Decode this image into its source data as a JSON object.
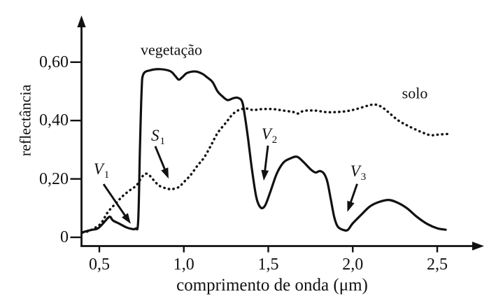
{
  "colors": {
    "ink": "#111111",
    "background": "#ffffff"
  },
  "chart_data": {
    "type": "line",
    "xlabel": "comprimento de onda (μm)",
    "ylabel": "reflectância",
    "xlim": [
      0.4,
      2.75
    ],
    "ylim": [
      0,
      0.75
    ],
    "grid": false,
    "x_ticks": [
      {
        "value": 0.5,
        "label": "0,5"
      },
      {
        "value": 1.0,
        "label": "1,0"
      },
      {
        "value": 1.5,
        "label": "1,5"
      },
      {
        "value": 2.0,
        "label": "2,0"
      },
      {
        "value": 2.5,
        "label": "2,5"
      }
    ],
    "y_ticks": [
      {
        "value": 0,
        "label": "0"
      },
      {
        "value": 0.2,
        "label": "0,20"
      },
      {
        "value": 0.4,
        "label": "0,40"
      },
      {
        "value": 0.6,
        "label": "0,60"
      }
    ],
    "series": [
      {
        "name": "vegetação",
        "style": "solid",
        "points": [
          [
            0.4,
            0.017
          ],
          [
            0.43,
            0.022
          ],
          [
            0.46,
            0.026
          ],
          [
            0.49,
            0.03
          ],
          [
            0.52,
            0.046
          ],
          [
            0.55,
            0.066
          ],
          [
            0.565,
            0.07
          ],
          [
            0.58,
            0.058
          ],
          [
            0.62,
            0.046
          ],
          [
            0.66,
            0.034
          ],
          [
            0.69,
            0.029
          ],
          [
            0.715,
            0.03
          ],
          [
            0.73,
            0.055
          ],
          [
            0.74,
            0.3
          ],
          [
            0.75,
            0.5
          ],
          [
            0.76,
            0.558
          ],
          [
            0.8,
            0.572
          ],
          [
            0.86,
            0.576
          ],
          [
            0.92,
            0.569
          ],
          [
            0.95,
            0.552
          ],
          [
            0.97,
            0.54
          ],
          [
            0.99,
            0.548
          ],
          [
            1.02,
            0.563
          ],
          [
            1.07,
            0.568
          ],
          [
            1.11,
            0.56
          ],
          [
            1.14,
            0.547
          ],
          [
            1.17,
            0.532
          ],
          [
            1.2,
            0.5
          ],
          [
            1.23,
            0.482
          ],
          [
            1.26,
            0.47
          ],
          [
            1.29,
            0.476
          ],
          [
            1.32,
            0.478
          ],
          [
            1.345,
            0.465
          ],
          [
            1.36,
            0.42
          ],
          [
            1.38,
            0.34
          ],
          [
            1.405,
            0.225
          ],
          [
            1.43,
            0.135
          ],
          [
            1.455,
            0.102
          ],
          [
            1.48,
            0.108
          ],
          [
            1.51,
            0.152
          ],
          [
            1.55,
            0.218
          ],
          [
            1.59,
            0.256
          ],
          [
            1.63,
            0.27
          ],
          [
            1.67,
            0.276
          ],
          [
            1.71,
            0.257
          ],
          [
            1.75,
            0.233
          ],
          [
            1.78,
            0.222
          ],
          [
            1.805,
            0.227
          ],
          [
            1.83,
            0.218
          ],
          [
            1.85,
            0.19
          ],
          [
            1.87,
            0.13
          ],
          [
            1.89,
            0.07
          ],
          [
            1.91,
            0.038
          ],
          [
            1.94,
            0.026
          ],
          [
            1.97,
            0.025
          ],
          [
            2.0,
            0.048
          ],
          [
            2.05,
            0.077
          ],
          [
            2.1,
            0.105
          ],
          [
            2.15,
            0.12
          ],
          [
            2.21,
            0.128
          ],
          [
            2.26,
            0.12
          ],
          [
            2.32,
            0.1
          ],
          [
            2.38,
            0.07
          ],
          [
            2.44,
            0.046
          ],
          [
            2.5,
            0.031
          ],
          [
            2.55,
            0.026
          ]
        ]
      },
      {
        "name": "solo",
        "style": "dotted",
        "points": [
          [
            0.4,
            0.016
          ],
          [
            0.43,
            0.02
          ],
          [
            0.47,
            0.031
          ],
          [
            0.51,
            0.048
          ],
          [
            0.55,
            0.086
          ],
          [
            0.6,
            0.118
          ],
          [
            0.64,
            0.142
          ],
          [
            0.68,
            0.161
          ],
          [
            0.72,
            0.178
          ],
          [
            0.75,
            0.205
          ],
          [
            0.775,
            0.218
          ],
          [
            0.8,
            0.21
          ],
          [
            0.83,
            0.19
          ],
          [
            0.86,
            0.175
          ],
          [
            0.9,
            0.167
          ],
          [
            0.93,
            0.165
          ],
          [
            0.97,
            0.172
          ],
          [
            1.0,
            0.189
          ],
          [
            1.04,
            0.213
          ],
          [
            1.08,
            0.245
          ],
          [
            1.12,
            0.273
          ],
          [
            1.16,
            0.314
          ],
          [
            1.2,
            0.357
          ],
          [
            1.25,
            0.393
          ],
          [
            1.29,
            0.422
          ],
          [
            1.33,
            0.437
          ],
          [
            1.37,
            0.441
          ],
          [
            1.41,
            0.436
          ],
          [
            1.46,
            0.439
          ],
          [
            1.53,
            0.439
          ],
          [
            1.59,
            0.434
          ],
          [
            1.65,
            0.429
          ],
          [
            1.68,
            0.424
          ],
          [
            1.71,
            0.433
          ],
          [
            1.78,
            0.434
          ],
          [
            1.84,
            0.429
          ],
          [
            1.9,
            0.429
          ],
          [
            1.96,
            0.432
          ],
          [
            2.02,
            0.439
          ],
          [
            2.09,
            0.451
          ],
          [
            2.13,
            0.455
          ],
          [
            2.17,
            0.447
          ],
          [
            2.21,
            0.429
          ],
          [
            2.27,
            0.4
          ],
          [
            2.33,
            0.381
          ],
          [
            2.4,
            0.362
          ],
          [
            2.46,
            0.35
          ],
          [
            2.51,
            0.352
          ],
          [
            2.56,
            0.354
          ]
        ]
      }
    ],
    "annotations": [
      {
        "letter": "V",
        "sub": "1",
        "arrow_from": [
          0.525,
          0.182
        ],
        "arrow_to": [
          0.686,
          0.046
        ]
      },
      {
        "letter": "S",
        "sub": "1",
        "arrow_from": [
          0.831,
          0.312
        ],
        "arrow_to": [
          0.91,
          0.201
        ]
      },
      {
        "letter": "V",
        "sub": "2",
        "arrow_from": [
          1.498,
          0.314
        ],
        "arrow_to": [
          1.473,
          0.194
        ]
      },
      {
        "letter": "V",
        "sub": "3",
        "arrow_from": [
          2.026,
          0.183
        ],
        "arrow_to": [
          1.968,
          0.087
        ]
      }
    ]
  }
}
